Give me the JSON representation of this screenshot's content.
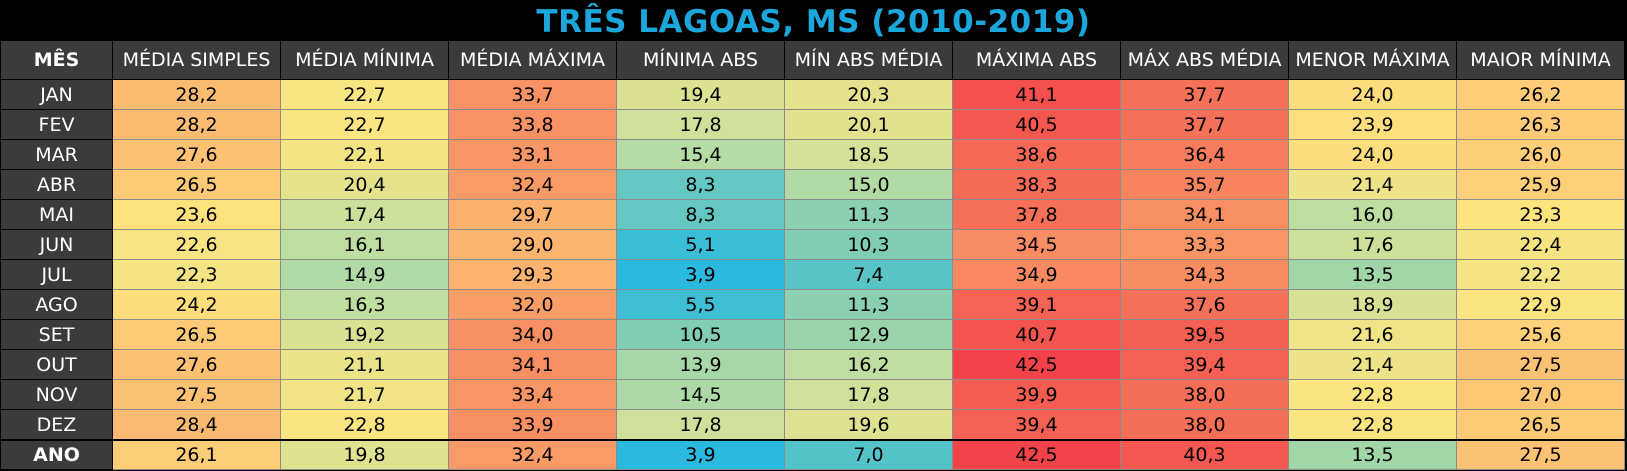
{
  "chart_data": {
    "type": "table",
    "title": "TRÊS LAGOAS, MS (2010-2019)",
    "columns": [
      "MÊS",
      "MÉDIA SIMPLES",
      "MÉDIA MÍNIMA",
      "MÉDIA MÁXIMA",
      "MÍNIMA ABS",
      "MÍN ABS MÉDIA",
      "MÁXIMA ABS",
      "MÁX ABS MÉDIA",
      "MENOR MÁXIMA",
      "MAIOR MÍNIMA"
    ],
    "rows": [
      {
        "label": "JAN",
        "values": [
          "28,2",
          "22,7",
          "33,7",
          "19,4",
          "20,3",
          "41,1",
          "37,7",
          "24,0",
          "26,2"
        ]
      },
      {
        "label": "FEV",
        "values": [
          "28,2",
          "22,7",
          "33,8",
          "17,8",
          "20,1",
          "40,5",
          "37,7",
          "23,9",
          "26,3"
        ]
      },
      {
        "label": "MAR",
        "values": [
          "27,6",
          "22,1",
          "33,1",
          "15,4",
          "18,5",
          "38,6",
          "36,4",
          "24,0",
          "26,0"
        ]
      },
      {
        "label": "ABR",
        "values": [
          "26,5",
          "20,4",
          "32,4",
          "8,3",
          "15,0",
          "38,3",
          "35,7",
          "21,4",
          "25,9"
        ]
      },
      {
        "label": "MAI",
        "values": [
          "23,6",
          "17,4",
          "29,7",
          "8,3",
          "11,3",
          "37,8",
          "34,1",
          "16,0",
          "23,3"
        ]
      },
      {
        "label": "JUN",
        "values": [
          "22,6",
          "16,1",
          "29,0",
          "5,1",
          "10,3",
          "34,5",
          "33,3",
          "17,6",
          "22,4"
        ]
      },
      {
        "label": "JUL",
        "values": [
          "22,3",
          "14,9",
          "29,3",
          "3,9",
          "7,4",
          "34,9",
          "34,3",
          "13,5",
          "22,2"
        ]
      },
      {
        "label": "AGO",
        "values": [
          "24,2",
          "16,3",
          "32,0",
          "5,5",
          "11,3",
          "39,1",
          "37,6",
          "18,9",
          "22,9"
        ]
      },
      {
        "label": "SET",
        "values": [
          "26,5",
          "19,2",
          "34,0",
          "10,5",
          "12,9",
          "40,7",
          "39,5",
          "21,6",
          "25,6"
        ]
      },
      {
        "label": "OUT",
        "values": [
          "27,6",
          "21,1",
          "34,1",
          "13,9",
          "16,2",
          "42,5",
          "39,4",
          "21,4",
          "27,5"
        ]
      },
      {
        "label": "NOV",
        "values": [
          "27,5",
          "21,7",
          "33,4",
          "14,5",
          "17,8",
          "39,9",
          "38,0",
          "22,8",
          "27,0"
        ]
      },
      {
        "label": "DEZ",
        "values": [
          "28,4",
          "22,8",
          "33,9",
          "17,8",
          "19,6",
          "39,4",
          "38,0",
          "22,8",
          "26,5"
        ]
      }
    ],
    "annual": {
      "label": "ANO",
      "values": [
        "26,1",
        "19,8",
        "32,4",
        "3,9",
        "7,0",
        "42,5",
        "40,3",
        "13,5",
        "27,5"
      ]
    }
  },
  "colors": {
    "title": "#1ba6dc",
    "header_bg": "#3b3b3b",
    "header_text": "#ffffff",
    "scale": [
      "#2ab9df",
      "#7fcdb4",
      "#c5df9e",
      "#fde57f",
      "#fbb06e",
      "#f7805e",
      "#f2434a"
    ]
  }
}
